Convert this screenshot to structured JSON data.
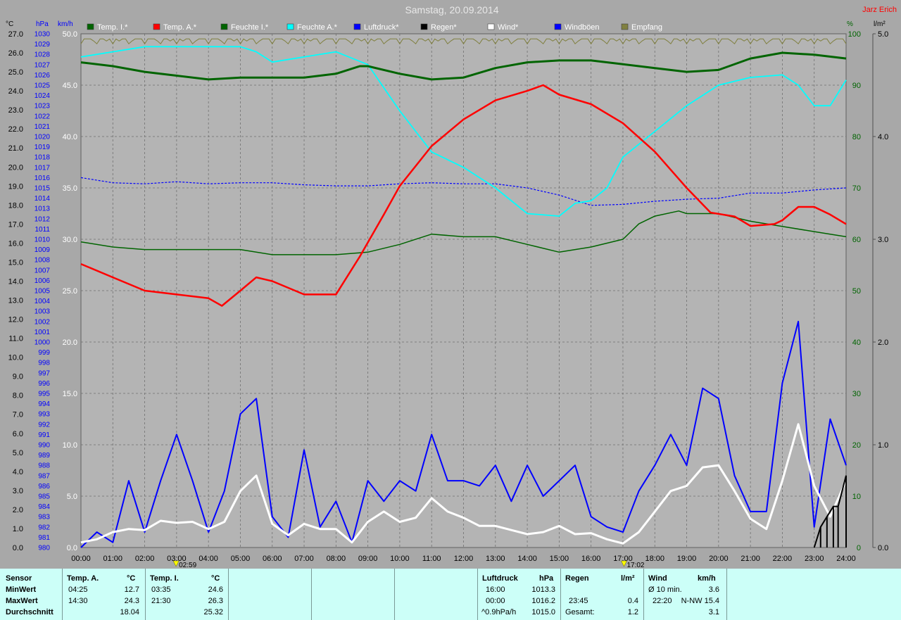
{
  "title": "Samstag, 20.09.2014",
  "author": "Jarz Erich",
  "axis_units": {
    "temp": "°C",
    "pressure": "hPa",
    "wind": "km/h",
    "humidity": "%",
    "rain": "l/m²"
  },
  "legend": [
    {
      "label": "Temp. I.*",
      "color": "#006400"
    },
    {
      "label": "Temp. A.*",
      "color": "#ff0000"
    },
    {
      "label": "Feuchte I.*",
      "color": "#006400"
    },
    {
      "label": "Feuchte A.*",
      "color": "#00ffff"
    },
    {
      "label": "Luftdruck*",
      "color": "#0000ff"
    },
    {
      "label": "Regen*",
      "color": "#000000"
    },
    {
      "label": "Wind*",
      "color": "#ffffff"
    },
    {
      "label": "Windböen",
      "color": "#0000ff"
    },
    {
      "label": "Empfang",
      "color": "#808040"
    }
  ],
  "markers": {
    "sunrise": "02:59",
    "sunset": "17:02"
  },
  "chart_data": {
    "type": "line",
    "x_range": [
      "00:00",
      "24:00"
    ],
    "x_ticks": [
      "00:00",
      "01:00",
      "02:00",
      "03:00",
      "04:00",
      "05:00",
      "06:00",
      "07:00",
      "08:00",
      "09:00",
      "10:00",
      "11:00",
      "12:00",
      "13:00",
      "14:00",
      "15:00",
      "16:00",
      "17:00",
      "18:00",
      "19:00",
      "20:00",
      "21:00",
      "22:00",
      "23:00",
      "24:00"
    ],
    "axes": {
      "temp": {
        "unit": "°C",
        "range": [
          0,
          27
        ],
        "step": 1
      },
      "pressure": {
        "unit": "hPa",
        "range": [
          980,
          1030
        ],
        "step": 1
      },
      "wind": {
        "unit": "km/h",
        "range": [
          0,
          50
        ],
        "step": 5
      },
      "humidity": {
        "unit": "%",
        "range": [
          0,
          100
        ],
        "step": 10
      },
      "rain": {
        "unit": "l/m²",
        "range": [
          0,
          5
        ],
        "step": 1
      }
    },
    "grid": true,
    "series": [
      {
        "name": "Temp. I.*",
        "axis": "temp",
        "color": "#006400",
        "points": [
          [
            0,
            25.5
          ],
          [
            1,
            25.3
          ],
          [
            2,
            25.0
          ],
          [
            3,
            24.8
          ],
          [
            4,
            24.6
          ],
          [
            5,
            24.7
          ],
          [
            6,
            24.7
          ],
          [
            7,
            24.7
          ],
          [
            8,
            24.9
          ],
          [
            8.75,
            25.3
          ],
          [
            9,
            25.3
          ],
          [
            10,
            24.9
          ],
          [
            11,
            24.6
          ],
          [
            12,
            24.7
          ],
          [
            13,
            25.2
          ],
          [
            14,
            25.5
          ],
          [
            15,
            25.6
          ],
          [
            16,
            25.6
          ],
          [
            17,
            25.4
          ],
          [
            18,
            25.2
          ],
          [
            19,
            25.0
          ],
          [
            20,
            25.1
          ],
          [
            21,
            25.7
          ],
          [
            22,
            26.0
          ],
          [
            23,
            25.9
          ],
          [
            24,
            25.7
          ]
        ]
      },
      {
        "name": "Temp. A.*",
        "axis": "temp",
        "color": "#ff0000",
        "points": [
          [
            0,
            14.9
          ],
          [
            1,
            14.2
          ],
          [
            2,
            13.5
          ],
          [
            3,
            13.3
          ],
          [
            4,
            13.1
          ],
          [
            4.42,
            12.7
          ],
          [
            5,
            13.5
          ],
          [
            5.5,
            14.2
          ],
          [
            6,
            14.0
          ],
          [
            7,
            13.3
          ],
          [
            8,
            13.3
          ],
          [
            8.75,
            15.3
          ],
          [
            9.5,
            17.5
          ],
          [
            10,
            19.0
          ],
          [
            11,
            21.1
          ],
          [
            12,
            22.5
          ],
          [
            13,
            23.5
          ],
          [
            14,
            24.0
          ],
          [
            14.5,
            24.3
          ],
          [
            15,
            23.8
          ],
          [
            16,
            23.3
          ],
          [
            17,
            22.3
          ],
          [
            18,
            20.8
          ],
          [
            19,
            18.9
          ],
          [
            19.75,
            17.6
          ],
          [
            20.5,
            17.4
          ],
          [
            21,
            16.9
          ],
          [
            21.75,
            17.0
          ],
          [
            22,
            17.2
          ],
          [
            22.5,
            17.9
          ],
          [
            23,
            17.9
          ],
          [
            23.5,
            17.5
          ],
          [
            24,
            17.0
          ]
        ]
      },
      {
        "name": "Feuchte I.*",
        "axis": "humidity",
        "color": "#006400",
        "points": [
          [
            0,
            59.5
          ],
          [
            1,
            58.5
          ],
          [
            2,
            58.0
          ],
          [
            3,
            58.0
          ],
          [
            4,
            58.0
          ],
          [
            5,
            58.0
          ],
          [
            6,
            57.0
          ],
          [
            7,
            57.0
          ],
          [
            8,
            57.0
          ],
          [
            9,
            57.5
          ],
          [
            10,
            59.0
          ],
          [
            11,
            61.0
          ],
          [
            12,
            60.5
          ],
          [
            13,
            60.5
          ],
          [
            14,
            59.0
          ],
          [
            15,
            57.5
          ],
          [
            16,
            58.5
          ],
          [
            17,
            60.0
          ],
          [
            17.5,
            63.0
          ],
          [
            18,
            64.5
          ],
          [
            18.75,
            65.5
          ],
          [
            19,
            65.0
          ],
          [
            20,
            65.0
          ],
          [
            21,
            63.5
          ],
          [
            22,
            62.5
          ],
          [
            23,
            61.5
          ],
          [
            24,
            60.5
          ]
        ]
      },
      {
        "name": "Feuchte A.*",
        "axis": "humidity",
        "color": "#00ffff",
        "points": [
          [
            0,
            95.5
          ],
          [
            1,
            96.5
          ],
          [
            2,
            97.5
          ],
          [
            3,
            97.5
          ],
          [
            4,
            97.5
          ],
          [
            5,
            97.5
          ],
          [
            5.5,
            96.5
          ],
          [
            6,
            94.5
          ],
          [
            7,
            95.5
          ],
          [
            8,
            96.5
          ],
          [
            9,
            94.0
          ],
          [
            10,
            85.0
          ],
          [
            11,
            77.0
          ],
          [
            12,
            74.0
          ],
          [
            13,
            70.0
          ],
          [
            14,
            65.0
          ],
          [
            15,
            64.5
          ],
          [
            15.5,
            67.0
          ],
          [
            16,
            67.5
          ],
          [
            16.5,
            70.0
          ],
          [
            17,
            76.0
          ],
          [
            18,
            81.0
          ],
          [
            19,
            86.0
          ],
          [
            20,
            90.0
          ],
          [
            21,
            91.5
          ],
          [
            22,
            92.0
          ],
          [
            22.5,
            90.0
          ],
          [
            23,
            86.0
          ],
          [
            23.5,
            86.0
          ],
          [
            24,
            91.0
          ]
        ]
      },
      {
        "name": "Luftdruck*",
        "axis": "pressure",
        "color": "#0000ff",
        "dashed": true,
        "points": [
          [
            0,
            1016.0
          ],
          [
            1,
            1015.5
          ],
          [
            2,
            1015.4
          ],
          [
            3,
            1015.6
          ],
          [
            4,
            1015.4
          ],
          [
            5,
            1015.5
          ],
          [
            6,
            1015.5
          ],
          [
            7,
            1015.3
          ],
          [
            8,
            1015.2
          ],
          [
            9,
            1015.2
          ],
          [
            10,
            1015.4
          ],
          [
            11,
            1015.5
          ],
          [
            12,
            1015.4
          ],
          [
            13,
            1015.4
          ],
          [
            14,
            1015.0
          ],
          [
            15,
            1014.3
          ],
          [
            16,
            1013.3
          ],
          [
            17,
            1013.4
          ],
          [
            18,
            1013.7
          ],
          [
            19,
            1013.9
          ],
          [
            20,
            1014.0
          ],
          [
            21,
            1014.5
          ],
          [
            22,
            1014.5
          ],
          [
            23,
            1014.8
          ],
          [
            24,
            1015.0
          ]
        ]
      },
      {
        "name": "Wind*",
        "axis": "wind",
        "color": "#ffffff",
        "points": [
          [
            0,
            0.5
          ],
          [
            0.5,
            0.8
          ],
          [
            1,
            1.5
          ],
          [
            1.5,
            1.8
          ],
          [
            2,
            1.7
          ],
          [
            2.5,
            2.6
          ],
          [
            3,
            2.4
          ],
          [
            3.5,
            2.5
          ],
          [
            4,
            1.8
          ],
          [
            4.5,
            2.5
          ],
          [
            5,
            5.5
          ],
          [
            5.5,
            7.0
          ],
          [
            6,
            2.3
          ],
          [
            6.5,
            1.2
          ],
          [
            7,
            2.3
          ],
          [
            7.5,
            1.8
          ],
          [
            8,
            1.8
          ],
          [
            8.5,
            0.5
          ],
          [
            9,
            2.5
          ],
          [
            9.5,
            3.5
          ],
          [
            10,
            2.5
          ],
          [
            10.5,
            2.9
          ],
          [
            11,
            4.8
          ],
          [
            11.5,
            3.5
          ],
          [
            12,
            2.9
          ],
          [
            12.5,
            2.1
          ],
          [
            13,
            2.1
          ],
          [
            13.5,
            1.7
          ],
          [
            14,
            1.3
          ],
          [
            14.5,
            1.5
          ],
          [
            15,
            2.1
          ],
          [
            15.5,
            1.3
          ],
          [
            16,
            1.4
          ],
          [
            16.5,
            0.8
          ],
          [
            17,
            0.4
          ],
          [
            17.5,
            1.5
          ],
          [
            18,
            3.5
          ],
          [
            18.5,
            5.5
          ],
          [
            19,
            6.0
          ],
          [
            19.5,
            7.8
          ],
          [
            20,
            8.0
          ],
          [
            20.5,
            5.5
          ],
          [
            21,
            2.8
          ],
          [
            21.5,
            1.8
          ],
          [
            22,
            6.5
          ],
          [
            22.5,
            12.0
          ],
          [
            23,
            6.0
          ],
          [
            23.5,
            3.0
          ],
          [
            24,
            6.5
          ]
        ]
      },
      {
        "name": "Windböen",
        "axis": "wind",
        "color": "#0000ff",
        "points": [
          [
            0,
            0.0
          ],
          [
            0.5,
            1.5
          ],
          [
            1,
            0.5
          ],
          [
            1.5,
            6.5
          ],
          [
            2,
            1.5
          ],
          [
            2.5,
            6.5
          ],
          [
            3,
            11.0
          ],
          [
            3.5,
            6.5
          ],
          [
            4,
            1.5
          ],
          [
            4.5,
            5.5
          ],
          [
            5,
            13.0
          ],
          [
            5.5,
            14.5
          ],
          [
            6,
            3.0
          ],
          [
            6.5,
            1.0
          ],
          [
            7,
            9.5
          ],
          [
            7.5,
            2.0
          ],
          [
            8,
            4.5
          ],
          [
            8.5,
            0.5
          ],
          [
            9,
            6.5
          ],
          [
            9.5,
            4.5
          ],
          [
            10,
            6.5
          ],
          [
            10.5,
            5.5
          ],
          [
            11,
            11.0
          ],
          [
            11.5,
            6.5
          ],
          [
            12,
            6.5
          ],
          [
            12.5,
            6.0
          ],
          [
            13,
            8.0
          ],
          [
            13.5,
            4.5
          ],
          [
            14,
            8.0
          ],
          [
            14.5,
            5.0
          ],
          [
            15,
            6.5
          ],
          [
            15.5,
            8.0
          ],
          [
            16,
            3.0
          ],
          [
            16.5,
            2.0
          ],
          [
            17,
            1.5
          ],
          [
            17.5,
            5.5
          ],
          [
            18,
            8.0
          ],
          [
            18.5,
            11.0
          ],
          [
            19,
            8.0
          ],
          [
            19.5,
            15.5
          ],
          [
            20,
            14.5
          ],
          [
            20.5,
            7.0
          ],
          [
            21,
            3.5
          ],
          [
            21.5,
            3.5
          ],
          [
            22,
            16.0
          ],
          [
            22.5,
            22.0
          ],
          [
            23,
            2.0
          ],
          [
            23.5,
            12.5
          ],
          [
            24,
            8.0
          ]
        ]
      },
      {
        "name": "Regen*",
        "axis": "rain",
        "color": "#000000",
        "points": [
          [
            23.0,
            0.0
          ],
          [
            23.2,
            0.2
          ],
          [
            23.4,
            0.3
          ],
          [
            23.6,
            0.4
          ],
          [
            23.75,
            0.4
          ],
          [
            24,
            0.7
          ]
        ]
      }
    ],
    "reception": {
      "name": "Empfang",
      "axis": "humidity",
      "color": "#808040",
      "level": 99
    }
  },
  "stats": {
    "row_labels": [
      "Sensor",
      "MinWert",
      "MaxWert",
      "Durchschnitt"
    ],
    "temp_a": {
      "header": "Temp. A.",
      "unit": "°C",
      "min_time": "04:25",
      "min_value": "12.7",
      "max_time": "14:30",
      "max_value": "24.3",
      "avg": "18.04"
    },
    "temp_i": {
      "header": "Temp. I.",
      "unit": "°C",
      "min_time": "03:35",
      "min_value": "24.6",
      "max_time": "21:30",
      "max_value": "26.3",
      "avg": "25.32"
    },
    "pressure": {
      "header": "Luftdruck",
      "unit": "hPa",
      "min_time": "16:00",
      "min_value": "1013.3",
      "max_time": "00:00",
      "max_value": "1016.2",
      "trend_label": "^0.9hPa/h",
      "trend_value": "1015.0"
    },
    "rain": {
      "header": "Regen",
      "unit": "l/m²",
      "max_time": "23:45",
      "max_value": "0.4",
      "total_label": "Gesamt:",
      "total_value": "1.2"
    },
    "wind": {
      "header": "Wind",
      "unit": "km/h",
      "avg10_label": "Ø 10 min.",
      "avg10_value": "3.6",
      "max_time": "22:20",
      "max_dir_value": "N-NW 15.4",
      "avg": "3.1"
    }
  }
}
